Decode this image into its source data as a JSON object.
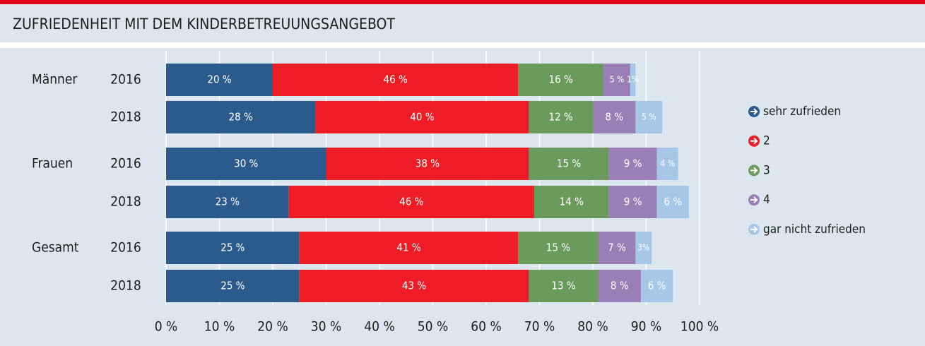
{
  "chart_data": {
    "type": "stacked-bar-horizontal",
    "title": "ZUFRIEDENHEIT MIT DEM KINDERBETREUUNGSANGEBOT",
    "groups": [
      "Männer",
      "Frauen",
      "Gesamt"
    ],
    "categories": [
      "2016",
      "2018",
      "2016",
      "2018",
      "2016",
      "2018"
    ],
    "series": [
      {
        "name": "sehr zufrieden",
        "color": "#2b5b8d",
        "values": [
          20,
          28,
          30,
          23,
          25,
          25
        ],
        "value_labels": [
          "20 %",
          "28 %",
          "30 %",
          "23 %",
          "25 %",
          "25 %"
        ]
      },
      {
        "name": "2",
        "color": "#ee1d25",
        "values": [
          46,
          40,
          38,
          46,
          41,
          43
        ],
        "value_labels": [
          "46 %",
          "40 %",
          "38 %",
          "46 %",
          "41 %",
          "43 %"
        ]
      },
      {
        "name": "3",
        "color": "#6b9b5c",
        "values": [
          16,
          12,
          15,
          14,
          15,
          13
        ],
        "value_labels": [
          "16 %",
          "12 %",
          "15 %",
          "14 %",
          "15 %",
          "13 %"
        ]
      },
      {
        "name": "4",
        "color": "#9a7fb6",
        "values": [
          5,
          8,
          9,
          9,
          7,
          8
        ],
        "value_labels": [
          "5 %",
          "8 %",
          "9 %",
          "9 %",
          "7 %",
          "8 %"
        ]
      },
      {
        "name": "gar nicht zufrieden",
        "color": "#a6c7e8",
        "values": [
          1,
          5,
          4,
          6,
          3,
          6
        ],
        "value_labels": [
          "1%",
          "5 %",
          "4 %",
          "6 %",
          "3%",
          "6 %"
        ]
      }
    ],
    "xlim": [
      0,
      100
    ],
    "xticks": [
      {
        "value": 0,
        "label": "0 %"
      },
      {
        "value": 10,
        "label": "10 %"
      },
      {
        "value": 20,
        "label": "20 %"
      },
      {
        "value": 30,
        "label": "30 %"
      },
      {
        "value": 40,
        "label": "40 %"
      },
      {
        "value": 50,
        "label": "50 %"
      },
      {
        "value": 60,
        "label": "60 %"
      },
      {
        "value": 70,
        "label": "70 %"
      },
      {
        "value": 80,
        "label": "80 %"
      },
      {
        "value": 90,
        "label": "90 %"
      },
      {
        "value": 100,
        "label": "100 %"
      }
    ],
    "grid": true,
    "legend": "right"
  }
}
